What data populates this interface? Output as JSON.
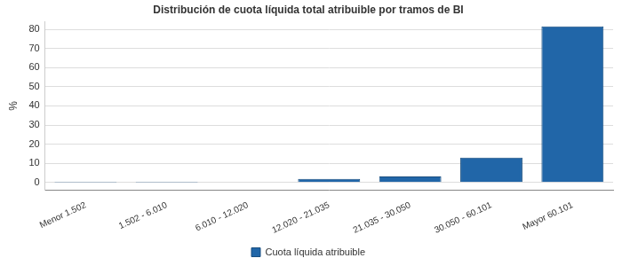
{
  "chart_data": {
    "type": "bar",
    "title": "Distribución de cuota líquida total atribuible por tramos de BI",
    "y_label": "%",
    "categories": [
      "Menor 1.502",
      "1.502 - 6.010",
      "6.010 - 12.020",
      "12.020 - 21.035",
      "21.035 - 30.050",
      "30.050 - 60.101",
      "Mayor 60.101"
    ],
    "series": [
      {
        "name": "Cuota líquida atribuible",
        "color": "#2166a8",
        "values": [
          0.05,
          0.1,
          0.3,
          1.9,
          3.2,
          13.0,
          81.5
        ]
      }
    ],
    "ylim": [
      -4,
      84
    ],
    "yticks": [
      0,
      10,
      20,
      30,
      40,
      50,
      60,
      70,
      80
    ],
    "grid": true,
    "legend": "bottom"
  }
}
